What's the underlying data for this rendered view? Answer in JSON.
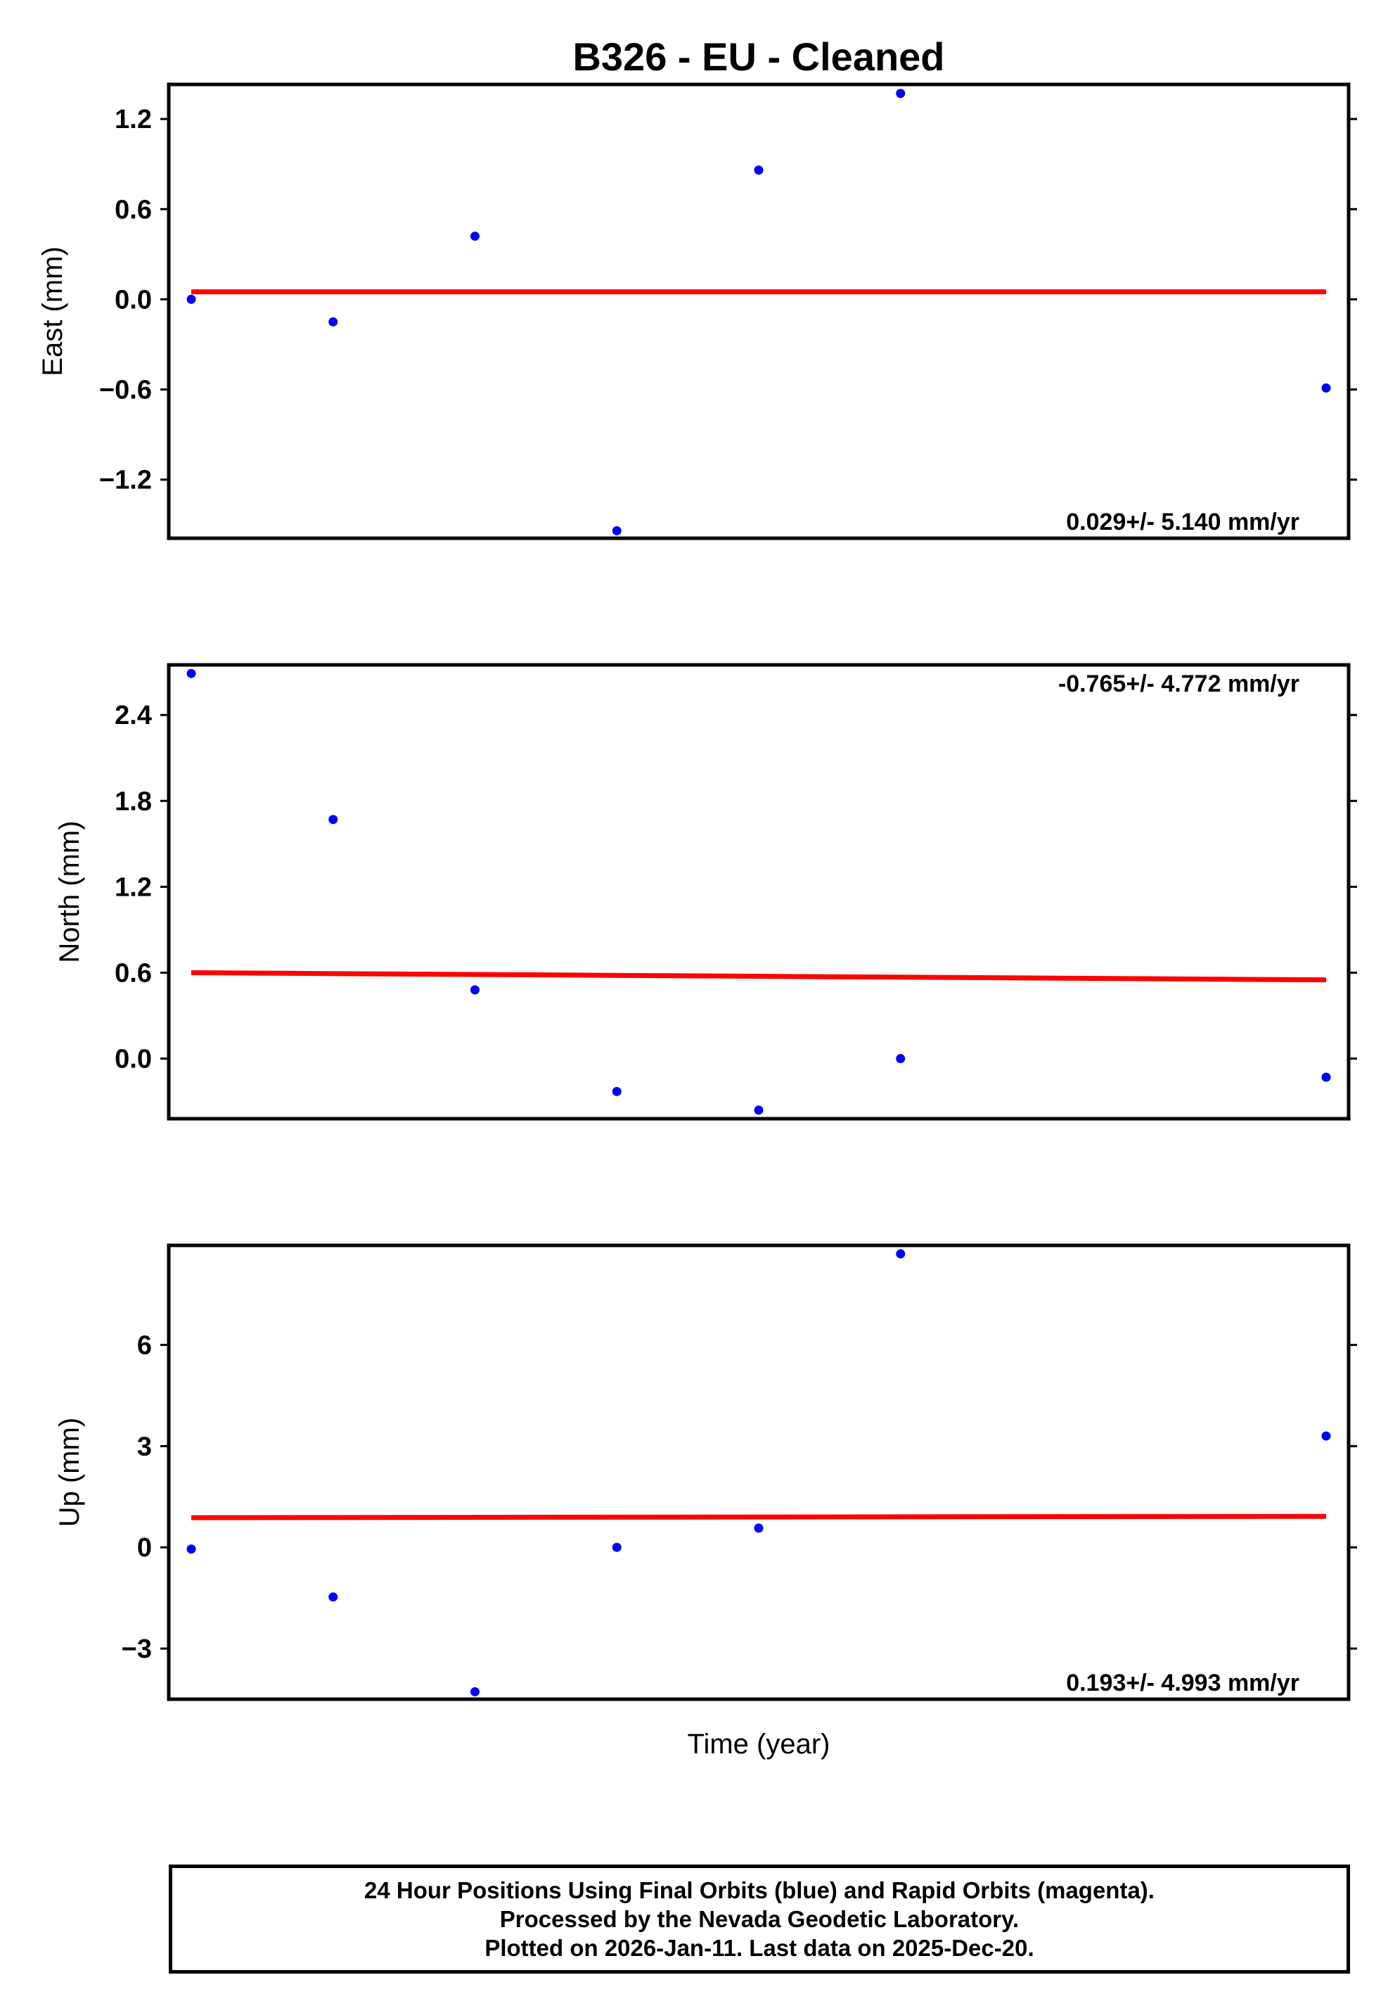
{
  "chart_data": [
    {
      "type": "scatter",
      "title": "B326  - EU - Cleaned",
      "ylabel": "East (mm)",
      "xlabel": "",
      "ylim": [
        -1.59,
        1.43
      ],
      "yticks": [
        1.2,
        0.6,
        0.0,
        -0.6,
        -1.2
      ],
      "ytick_labels": [
        "1.2",
        "0.6",
        "0.0",
        "−0.6",
        "−1.2"
      ],
      "x": [
        0,
        1,
        2,
        3,
        4,
        5,
        8
      ],
      "y": [
        0.0,
        -0.15,
        0.42,
        -1.54,
        0.86,
        1.37,
        -0.59
      ],
      "trend": {
        "x": [
          0,
          8
        ],
        "y": [
          0.05,
          0.05
        ]
      },
      "rate_text": "0.029+/- 5.140 mm/yr",
      "rate_position": "bottom-right"
    },
    {
      "type": "scatter",
      "ylabel": "North (mm)",
      "xlabel": "",
      "ylim": [
        -0.42,
        2.75
      ],
      "yticks": [
        2.4,
        1.8,
        1.2,
        0.6,
        0.0
      ],
      "ytick_labels": [
        "2.4",
        "1.8",
        "1.2",
        "0.6",
        "0.0"
      ],
      "x": [
        0,
        1,
        2,
        3,
        4,
        5,
        8
      ],
      "y": [
        2.69,
        1.67,
        0.48,
        -0.23,
        -0.36,
        0.0,
        -0.13
      ],
      "trend": {
        "x": [
          0,
          8
        ],
        "y": [
          0.6,
          0.55
        ]
      },
      "rate_text": "-0.765+/- 4.772 mm/yr",
      "rate_position": "top-right"
    },
    {
      "type": "scatter",
      "ylabel": "Up (mm)",
      "xlabel": "Time (year)",
      "ylim": [
        -4.5,
        8.95
      ],
      "yticks": [
        6,
        3,
        0,
        -3
      ],
      "ytick_labels": [
        "6",
        "3",
        "0",
        "−3"
      ],
      "x": [
        0,
        1,
        2,
        3,
        4,
        5,
        8
      ],
      "y": [
        -0.05,
        -1.47,
        -4.28,
        0.0,
        0.57,
        8.7,
        3.3
      ],
      "trend": {
        "x": [
          0,
          8
        ],
        "y": [
          0.88,
          0.92
        ]
      },
      "rate_text": "0.193+/- 4.993 mm/yr",
      "rate_position": "bottom-right"
    }
  ],
  "colors": {
    "points": "#0000ff",
    "trend": "#ff0000",
    "frame": "#000000"
  },
  "footer": {
    "line1": "24 Hour Positions Using Final Orbits (blue) and Rapid Orbits (magenta).",
    "line2": "Processed by the Nevada Geodetic Laboratory.",
    "line3": "Plotted on 2026-Jan-11. Last data on 2025-Dec-20."
  }
}
